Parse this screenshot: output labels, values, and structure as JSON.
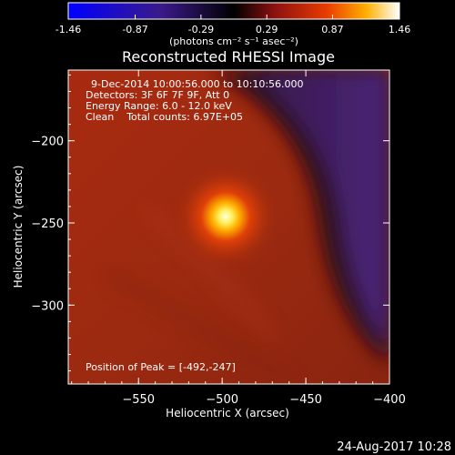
{
  "colorbar": {
    "ticks": [
      "-1.46",
      "-0.87",
      "-0.29",
      "0.29",
      "0.87",
      "1.46"
    ],
    "tick_values": [
      -1.46,
      -0.87,
      -0.29,
      0.29,
      0.87,
      1.46
    ],
    "range": [
      -1.46,
      1.46
    ],
    "units": "(photons cm⁻² s⁻¹ asec⁻²)"
  },
  "chart_data": {
    "type": "heatmap",
    "title": "Reconstructed RHESSI Image",
    "xlabel": "Heliocentric X (arcsec)",
    "ylabel": "Heliocentric Y (arcsec)",
    "xlim": [
      -592,
      -400
    ],
    "ylim": [
      -348,
      -157
    ],
    "xticks": [
      -550,
      -500,
      -450,
      -400
    ],
    "xtick_labels": [
      "−550",
      "−500",
      "−450",
      "−400"
    ],
    "yticks": [
      -200,
      -250,
      -300
    ],
    "ytick_labels": [
      "−200",
      "−250",
      "−300"
    ],
    "peak": [
      -492,
      -247
    ],
    "annotations": [
      "9-Dec-2014 10:00:56.000 to 10:10:56.000",
      "Detectors: 3F 6F 7F 9F, Att 0",
      "Energy Range: 6.0 - 12.0 keV",
      "Clean    Total counts: 6.97E+05"
    ],
    "peak_label": "Position of Peak = [-492,-247]",
    "colors": {
      "peak": "#ffffd0",
      "core": "#ffc800",
      "halo": "#c83c0a",
      "background": "#a0280e",
      "dark_lane": "#2a0a10",
      "limb_purple": "#3a1a5a"
    }
  },
  "footer": {
    "date": "24-Aug-2017 10:28"
  }
}
